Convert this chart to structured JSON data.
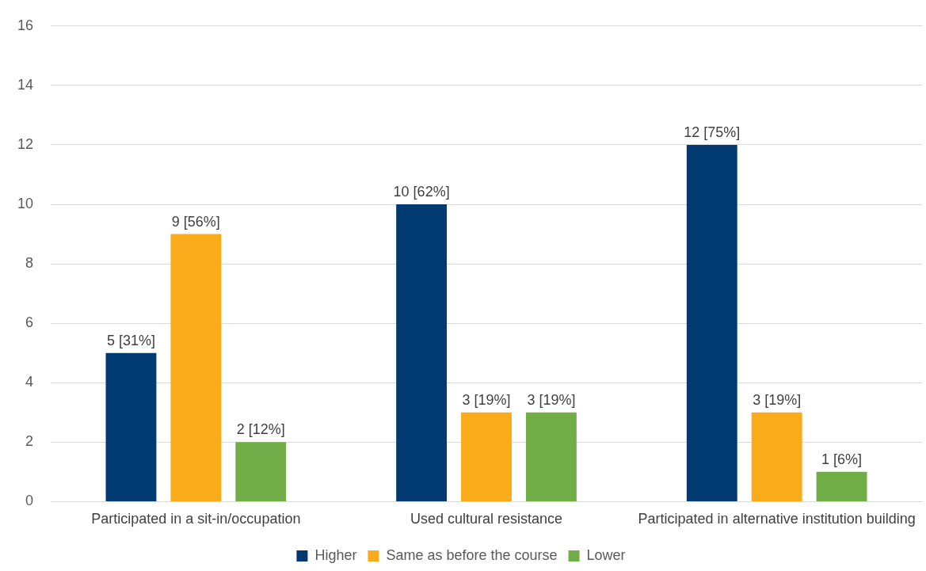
{
  "chart_data": {
    "type": "bar",
    "categories": [
      "Participated in a sit-in/occupation",
      "Used cultural resistance",
      "Participated in alternative institution building"
    ],
    "series": [
      {
        "name": "Higher",
        "color": "#003a70",
        "values": [
          5,
          10,
          12
        ],
        "value_labels": [
          "5 [31%]",
          "10 [62%]",
          "12 [75%]"
        ]
      },
      {
        "name": "Same as before the course",
        "color": "#f9ab1a",
        "values": [
          9,
          3,
          3
        ],
        "value_labels": [
          "9 [56%]",
          "3 [19%]",
          "3 [19%]"
        ]
      },
      {
        "name": "Lower",
        "color": "#70ad47",
        "values": [
          2,
          3,
          1
        ],
        "value_labels": [
          "2 [12%]",
          "3 [19%]",
          "1 [6%]"
        ]
      }
    ],
    "ylim": [
      0,
      16
    ],
    "yticks": [
      0,
      2,
      4,
      6,
      8,
      10,
      12,
      14,
      16
    ],
    "grid": "y",
    "legend": "bottom"
  }
}
